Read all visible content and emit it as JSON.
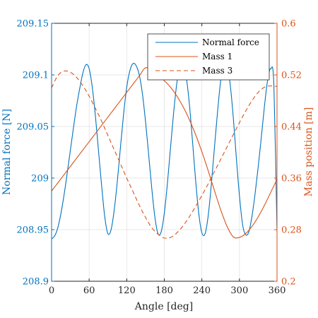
{
  "chart_data": {
    "type": "line",
    "xlabel": "Angle [deg]",
    "ylabel_left": "Normal force [N]",
    "ylabel_right": "Mass position [m]",
    "xlim": [
      0,
      360
    ],
    "ylim_left": [
      208.9,
      209.15
    ],
    "ylim_right": [
      0.2,
      0.6
    ],
    "x_ticks": [
      "0",
      "60",
      "120",
      "180",
      "240",
      "300",
      "360"
    ],
    "y_left_ticks": [
      "208.9",
      "208.95",
      "209",
      "209.05",
      "209.1",
      "209.15"
    ],
    "y_right_ticks": [
      "0.2",
      "0.28",
      "0.36",
      "0.44",
      "0.52",
      "0.6"
    ],
    "grid": true,
    "legend_position": "top-right",
    "colors": {
      "left_axis": "#0072BD",
      "right_axis": "#D95319",
      "grid": "#DFDFDF",
      "axes": "#262626"
    },
    "series": [
      {
        "name": "Normal force",
        "axis": "left",
        "style": "solid",
        "color": "#0072BD",
        "x": [
          0,
          5,
          10,
          15,
          20,
          25,
          30,
          35,
          40,
          45,
          50,
          55,
          60,
          65,
          70,
          75,
          80,
          85,
          90,
          95,
          100,
          105,
          110,
          115,
          120,
          125,
          130,
          135,
          140,
          145,
          150,
          155,
          160,
          165,
          170,
          175,
          180,
          185,
          190,
          195,
          200,
          205,
          210,
          215,
          220,
          225,
          230,
          235,
          240,
          245,
          250,
          255,
          260,
          265,
          270,
          275,
          280,
          285,
          290,
          295,
          300,
          305,
          310,
          315,
          320,
          325,
          330,
          335,
          340,
          345,
          350,
          355,
          360
        ],
        "y": [
          208.941,
          208.944,
          208.952,
          208.966,
          208.984,
          209.005,
          209.027,
          209.049,
          209.07,
          209.087,
          209.102,
          209.11,
          209.106,
          209.088,
          209.06,
          209.026,
          208.992,
          208.962,
          208.946,
          208.95,
          208.969,
          208.997,
          209.03,
          209.062,
          209.088,
          209.104,
          209.111,
          209.109,
          209.1,
          209.082,
          209.055,
          209.023,
          208.99,
          208.962,
          208.946,
          208.948,
          208.966,
          208.995,
          209.03,
          209.064,
          209.092,
          209.108,
          209.11,
          209.098,
          209.072,
          209.036,
          208.998,
          208.966,
          208.947,
          208.946,
          208.963,
          208.993,
          209.029,
          209.064,
          209.094,
          209.11,
          209.109,
          209.092,
          209.06,
          209.02,
          208.983,
          208.955,
          208.945,
          208.948,
          208.963,
          208.985,
          209.011,
          209.04,
          209.07,
          209.095,
          209.106,
          209.09,
          208.947
        ]
      },
      {
        "name": "Mass 1",
        "axis": "right",
        "style": "solid",
        "color": "#D95319",
        "x": [
          0,
          10,
          20,
          30,
          40,
          50,
          60,
          70,
          80,
          90,
          100,
          110,
          120,
          130,
          140,
          150,
          160,
          170,
          180,
          190,
          200,
          210,
          220,
          230,
          240,
          250,
          260,
          270,
          280,
          290,
          300,
          310,
          320,
          330,
          340,
          350,
          360
        ],
        "y": [
          0.34,
          0.3526,
          0.3654,
          0.3781,
          0.3909,
          0.4036,
          0.4164,
          0.4291,
          0.4419,
          0.4546,
          0.4674,
          0.4801,
          0.4929,
          0.5056,
          0.5184,
          0.5311,
          0.526,
          0.5184,
          0.5111,
          0.5008,
          0.4873,
          0.4707,
          0.4507,
          0.4274,
          0.4009,
          0.3717,
          0.3409,
          0.311,
          0.2856,
          0.269,
          0.268,
          0.274,
          0.285,
          0.3,
          0.318,
          0.338,
          0.358
        ]
      },
      {
        "name": "Mass 3",
        "axis": "right",
        "style": "dashed",
        "color": "#D95319",
        "x": [
          0,
          10,
          20,
          30,
          40,
          50,
          60,
          70,
          80,
          90,
          100,
          110,
          120,
          130,
          140,
          150,
          160,
          170,
          180,
          190,
          200,
          210,
          220,
          230,
          240,
          250,
          260,
          270,
          280,
          290,
          300,
          310,
          320,
          330,
          340,
          350,
          360
        ],
        "y": [
          0.5,
          0.519,
          0.526,
          0.524,
          0.516,
          0.503,
          0.487,
          0.468,
          0.448,
          0.426,
          0.404,
          0.382,
          0.36,
          0.339,
          0.318,
          0.299,
          0.283,
          0.273,
          0.267,
          0.268,
          0.275,
          0.286,
          0.3,
          0.316,
          0.333,
          0.351,
          0.37,
          0.389,
          0.408,
          0.427,
          0.446,
          0.464,
          0.48,
          0.493,
          0.501,
          0.503,
          0.502
        ]
      }
    ]
  }
}
